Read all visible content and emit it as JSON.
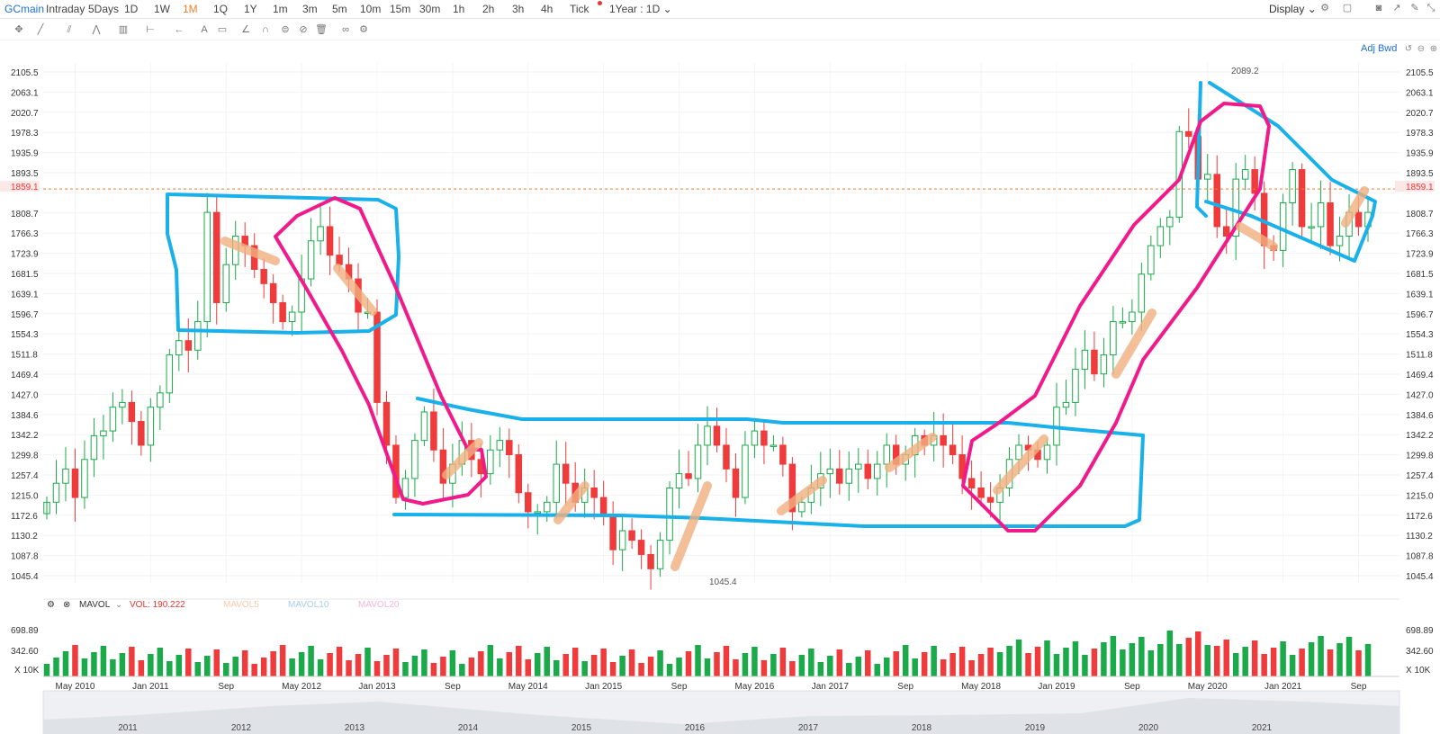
{
  "toolbar": {
    "symbol": "GCmain",
    "timeframes": [
      "Intraday",
      "5Days",
      "1D",
      "1W",
      "1M",
      "1Q",
      "1Y",
      "1m",
      "3m",
      "5m",
      "10m",
      "15m",
      "30m",
      "1h",
      "2h",
      "3h",
      "4h",
      "Tick"
    ],
    "active_timeframe": "1M",
    "range": "1Year : 1D",
    "display": "Display"
  },
  "adj_label": "Adj Bwd",
  "price_marker": "1859.1",
  "high_label": "2089.2",
  "low_label": "1045.4",
  "volume_panel": {
    "indicator": "MAVOL",
    "vol": "VOL: 190.222",
    "mavol5": "MAVOL5",
    "mavol10": "MAVOL10",
    "mavol20": "MAVOL20",
    "unit": "X 10K",
    "ticks": [
      "698.89",
      "342.60"
    ]
  },
  "navigator_years": [
    "2011",
    "2012",
    "2013",
    "2014",
    "2015",
    "2016",
    "2017",
    "2018",
    "2019",
    "2020",
    "2021"
  ],
  "colors": {
    "up": "#1aaa4a",
    "down": "#ef3b3b",
    "accent": "#1d6fe0",
    "blue_drawing": "#1ab0ea",
    "pink_drawing": "#f01a8a",
    "orange_drawing": "#f0b080",
    "current_line": "#f07d2c"
  },
  "chart_data": {
    "type": "candlestick",
    "title": "GCmain",
    "frequency": "1M",
    "x_ticks": [
      "May 2010",
      "Jan 2011",
      "Sep",
      "May 2012",
      "Jan 2013",
      "Sep",
      "May 2014",
      "Jan 2015",
      "Sep",
      "May 2016",
      "Jan 2017",
      "Sep",
      "May 2018",
      "Jan 2019",
      "Sep",
      "May 2020",
      "Jan 2021",
      "Sep"
    ],
    "y_ticks": [
      2105.5,
      2063.1,
      2020.7,
      1978.3,
      1935.9,
      1893.5,
      1851.1,
      1808.7,
      1766.3,
      1723.9,
      1681.5,
      1639.1,
      1596.7,
      1554.3,
      1511.8,
      1469.4,
      1427.0,
      1384.6,
      1342.2,
      1299.8,
      1257.4,
      1215.0,
      1172.6,
      1130.2,
      1087.8,
      1045.4
    ],
    "ylim": [
      1045.4,
      2105.5
    ],
    "current_price": 1859.1,
    "high": 2089.2,
    "low": 1045.4,
    "close": [
      1200,
      1240,
      1270,
      1210,
      1290,
      1340,
      1350,
      1400,
      1410,
      1370,
      1320,
      1400,
      1430,
      1510,
      1540,
      1520,
      1580,
      1810,
      1620,
      1700,
      1760,
      1740,
      1690,
      1660,
      1620,
      1580,
      1600,
      1670,
      1750,
      1780,
      1720,
      1700,
      1670,
      1600,
      1600,
      1410,
      1320,
      1210,
      1250,
      1330,
      1390,
      1310,
      1240,
      1280,
      1330,
      1290,
      1260,
      1310,
      1330,
      1300,
      1220,
      1180,
      1180,
      1200,
      1280,
      1240,
      1200,
      1230,
      1210,
      1170,
      1100,
      1140,
      1120,
      1090,
      1060,
      1120,
      1230,
      1260,
      1250,
      1320,
      1360,
      1320,
      1270,
      1210,
      1320,
      1350,
      1320,
      1320,
      1280,
      1180,
      1200,
      1230,
      1260,
      1270,
      1240,
      1270,
      1280,
      1250,
      1280,
      1320,
      1280,
      1300,
      1340,
      1320,
      1340,
      1320,
      1300,
      1250,
      1230,
      1210,
      1200,
      1230,
      1290,
      1320,
      1310,
      1290,
      1320,
      1400,
      1410,
      1480,
      1520,
      1470,
      1510,
      1580,
      1580,
      1600,
      1680,
      1740,
      1780,
      1800,
      1980,
      1970,
      1880,
      1890,
      1780,
      1760,
      1880,
      1900,
      1850,
      1740,
      1730,
      1830,
      1900,
      1780,
      1780,
      1830,
      1740,
      1760,
      1810,
      1780,
      1810
    ],
    "volume_ticks": [
      698.89,
      342.6
    ]
  }
}
